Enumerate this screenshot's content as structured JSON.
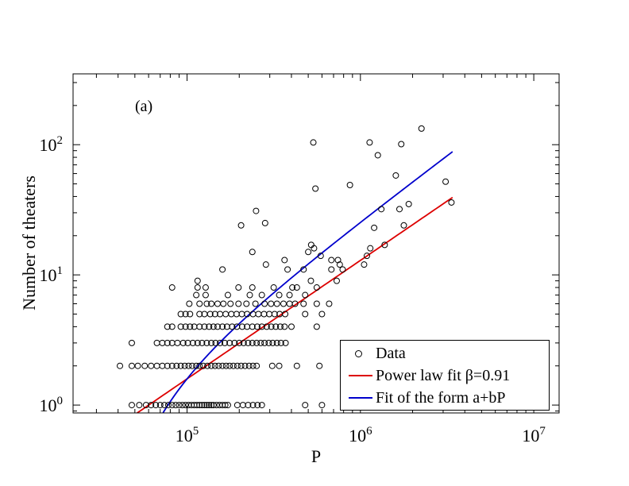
{
  "chart_data": {
    "type": "scatter",
    "panel_label": "(a)",
    "xlabel": "P",
    "ylabel": "Number of theaters",
    "xscale": "log",
    "yscale": "log",
    "xlim": [
      22000,
      14000000
    ],
    "ylim": [
      0.87,
      350
    ],
    "x_ticks": [
      {
        "value": 100000,
        "base": "10",
        "exp": "5"
      },
      {
        "value": 1000000,
        "base": "10",
        "exp": "6"
      },
      {
        "value": 10000000,
        "base": "10",
        "exp": "7"
      }
    ],
    "y_ticks": [
      {
        "value": 1,
        "base": "10",
        "exp": "0"
      },
      {
        "value": 10,
        "base": "10",
        "exp": "1"
      },
      {
        "value": 100,
        "base": "10",
        "exp": "2"
      }
    ],
    "legend_position": "bottom-right",
    "series": [
      {
        "name": "Data",
        "kind": "points",
        "marker": "open-circle",
        "color": "#000000",
        "points": [
          [
            48000,
            3
          ],
          [
            41000,
            2
          ],
          [
            48000,
            2
          ],
          [
            52000,
            2
          ],
          [
            57000,
            2
          ],
          [
            62000,
            2
          ],
          [
            67000,
            2
          ],
          [
            72000,
            2
          ],
          [
            77000,
            2
          ],
          [
            82000,
            2
          ],
          [
            87000,
            2
          ],
          [
            92000,
            2
          ],
          [
            97000,
            2
          ],
          [
            102000,
            2
          ],
          [
            107000,
            2
          ],
          [
            113000,
            2
          ],
          [
            118000,
            2
          ],
          [
            124000,
            2
          ],
          [
            131000,
            2
          ],
          [
            138000,
            2
          ],
          [
            145000,
            2
          ],
          [
            152000,
            2
          ],
          [
            160000,
            2
          ],
          [
            168000,
            2
          ],
          [
            176000,
            2
          ],
          [
            185000,
            2
          ],
          [
            195000,
            2
          ],
          [
            205000,
            2
          ],
          [
            216000,
            2
          ],
          [
            228000,
            2
          ],
          [
            240000,
            2
          ],
          [
            252000,
            2
          ],
          [
            310000,
            2
          ],
          [
            340000,
            2
          ],
          [
            430000,
            2
          ],
          [
            580000,
            2
          ],
          [
            48000,
            1
          ],
          [
            53000,
            1
          ],
          [
            58000,
            1
          ],
          [
            62000,
            1
          ],
          [
            66000,
            1
          ],
          [
            70000,
            1
          ],
          [
            74000,
            1
          ],
          [
            78000,
            1
          ],
          [
            82000,
            1
          ],
          [
            86000,
            1
          ],
          [
            90000,
            1
          ],
          [
            94000,
            1
          ],
          [
            98000,
            1
          ],
          [
            102000,
            1
          ],
          [
            106000,
            1
          ],
          [
            110000,
            1
          ],
          [
            114000,
            1
          ],
          [
            118000,
            1
          ],
          [
            122000,
            1
          ],
          [
            126000,
            1
          ],
          [
            130000,
            1
          ],
          [
            134000,
            1
          ],
          [
            138000,
            1
          ],
          [
            142000,
            1
          ],
          [
            148000,
            1
          ],
          [
            154000,
            1
          ],
          [
            160000,
            1
          ],
          [
            166000,
            1
          ],
          [
            172000,
            1
          ],
          [
            195000,
            1
          ],
          [
            210000,
            1
          ],
          [
            225000,
            1
          ],
          [
            240000,
            1
          ],
          [
            255000,
            1
          ],
          [
            270000,
            1
          ],
          [
            480000,
            1
          ],
          [
            600000,
            1
          ],
          [
            67000,
            3
          ],
          [
            72000,
            3
          ],
          [
            77000,
            3
          ],
          [
            82000,
            3
          ],
          [
            88000,
            3
          ],
          [
            95000,
            3
          ],
          [
            101000,
            3
          ],
          [
            108000,
            3
          ],
          [
            115000,
            3
          ],
          [
            122000,
            3
          ],
          [
            130000,
            3
          ],
          [
            138000,
            3
          ],
          [
            146000,
            3
          ],
          [
            155000,
            3
          ],
          [
            165000,
            3
          ],
          [
            176000,
            3
          ],
          [
            188000,
            3
          ],
          [
            200000,
            3
          ],
          [
            212000,
            3
          ],
          [
            225000,
            3
          ],
          [
            238000,
            3
          ],
          [
            252000,
            3
          ],
          [
            266000,
            3
          ],
          [
            280000,
            3
          ],
          [
            296000,
            3
          ],
          [
            312000,
            3
          ],
          [
            330000,
            3
          ],
          [
            348000,
            3
          ],
          [
            370000,
            3
          ],
          [
            77000,
            4
          ],
          [
            82000,
            4
          ],
          [
            92000,
            4
          ],
          [
            98000,
            4
          ],
          [
            104000,
            4
          ],
          [
            110000,
            4
          ],
          [
            118000,
            4
          ],
          [
            126000,
            4
          ],
          [
            134000,
            4
          ],
          [
            142000,
            4
          ],
          [
            150000,
            4
          ],
          [
            160000,
            4
          ],
          [
            170000,
            4
          ],
          [
            182000,
            4
          ],
          [
            194000,
            4
          ],
          [
            208000,
            4
          ],
          [
            222000,
            4
          ],
          [
            238000,
            4
          ],
          [
            254000,
            4
          ],
          [
            270000,
            4
          ],
          [
            288000,
            4
          ],
          [
            306000,
            4
          ],
          [
            325000,
            4
          ],
          [
            345000,
            4
          ],
          [
            365000,
            4
          ],
          [
            400000,
            4
          ],
          [
            560000,
            4
          ],
          [
            92000,
            5
          ],
          [
            98000,
            5
          ],
          [
            104000,
            5
          ],
          [
            118000,
            5
          ],
          [
            126000,
            5
          ],
          [
            136000,
            5
          ],
          [
            145000,
            5
          ],
          [
            155000,
            5
          ],
          [
            167000,
            5
          ],
          [
            180000,
            5
          ],
          [
            193000,
            5
          ],
          [
            207000,
            5
          ],
          [
            222000,
            5
          ],
          [
            240000,
            5
          ],
          [
            258000,
            5
          ],
          [
            278000,
            5
          ],
          [
            298000,
            5
          ],
          [
            320000,
            5
          ],
          [
            342000,
            5
          ],
          [
            368000,
            5
          ],
          [
            480000,
            5
          ],
          [
            600000,
            5
          ],
          [
            103000,
            6
          ],
          [
            118000,
            6
          ],
          [
            130000,
            6
          ],
          [
            138000,
            6
          ],
          [
            150000,
            6
          ],
          [
            162000,
            6
          ],
          [
            178000,
            6
          ],
          [
            198000,
            6
          ],
          [
            220000,
            6
          ],
          [
            248000,
            6
          ],
          [
            280000,
            6
          ],
          [
            305000,
            6
          ],
          [
            330000,
            6
          ],
          [
            360000,
            6
          ],
          [
            390000,
            6
          ],
          [
            420000,
            6
          ],
          [
            470000,
            6
          ],
          [
            560000,
            6
          ],
          [
            660000,
            6
          ],
          [
            113000,
            7
          ],
          [
            128000,
            7
          ],
          [
            172000,
            7
          ],
          [
            230000,
            7
          ],
          [
            270000,
            7
          ],
          [
            340000,
            7
          ],
          [
            390000,
            7
          ],
          [
            480000,
            7
          ],
          [
            82000,
            8
          ],
          [
            115000,
            8
          ],
          [
            128000,
            8
          ],
          [
            198000,
            8
          ],
          [
            238000,
            8
          ],
          [
            316000,
            8
          ],
          [
            405000,
            8
          ],
          [
            430000,
            8
          ],
          [
            560000,
            8
          ],
          [
            115000,
            9
          ],
          [
            518000,
            9
          ],
          [
            730000,
            9
          ],
          [
            160000,
            11
          ],
          [
            380000,
            11
          ],
          [
            470000,
            11
          ],
          [
            680000,
            11
          ],
          [
            790000,
            11
          ],
          [
            285000,
            12
          ],
          [
            365000,
            13
          ],
          [
            680000,
            13
          ],
          [
            742000,
            13
          ],
          [
            1050000,
            12
          ],
          [
            1140000,
            16
          ],
          [
            238000,
            15
          ],
          [
            500000,
            15
          ],
          [
            520000,
            17
          ],
          [
            540000,
            16
          ],
          [
            590000,
            14
          ],
          [
            760000,
            12
          ],
          [
            1090000,
            14
          ],
          [
            205000,
            24
          ],
          [
            250000,
            31
          ],
          [
            282000,
            25
          ],
          [
            550000,
            46
          ],
          [
            870000,
            49
          ],
          [
            1320000,
            32
          ],
          [
            1380000,
            17
          ],
          [
            535000,
            104
          ],
          [
            1130000,
            104
          ],
          [
            1200000,
            23
          ],
          [
            1260000,
            83
          ],
          [
            1600000,
            58
          ],
          [
            1680000,
            32
          ],
          [
            1720000,
            101
          ],
          [
            1780000,
            24
          ],
          [
            1900000,
            35
          ],
          [
            2250000,
            133
          ],
          [
            3100000,
            52
          ],
          [
            3350000,
            36
          ]
        ]
      },
      {
        "name": "Power law fit β=0.91",
        "kind": "line",
        "color": "#dd0000",
        "function": "power",
        "a": 4.48e-05,
        "beta": 0.91,
        "xrange": [
          44000,
          3400000
        ]
      },
      {
        "name": "Fit of the form a+bP",
        "kind": "line",
        "color": "#0000cc",
        "function": "linear",
        "a": -1.04,
        "b": 2.63e-05,
        "xrange": [
          50000,
          3400000
        ]
      }
    ]
  }
}
